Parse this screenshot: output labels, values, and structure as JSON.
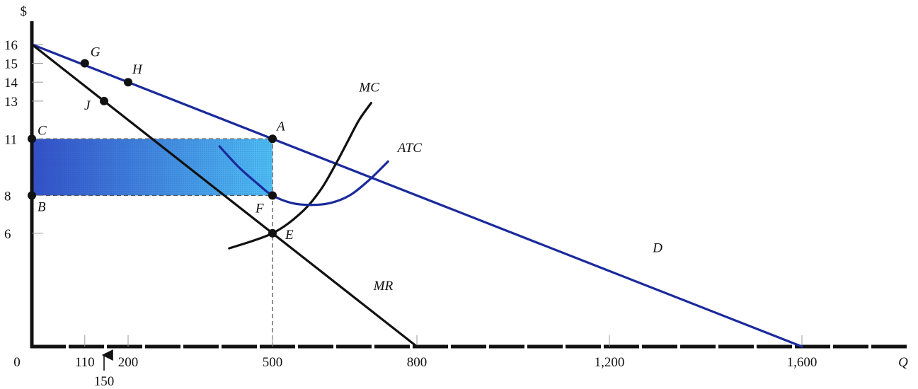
{
  "chart_data": {
    "type": "line",
    "title": "",
    "xlabel": "Q",
    "ylabel": "$",
    "origin_label": "0",
    "xlim": [
      0,
      1700
    ],
    "ylim": [
      0,
      17
    ],
    "grid": false,
    "x_ticks": [
      {
        "value": 110,
        "label": "110"
      },
      {
        "value": 200,
        "label": "200"
      },
      {
        "value": 500,
        "label": "500"
      },
      {
        "value": 800,
        "label": "800"
      },
      {
        "value": 1200,
        "label": "1,200"
      },
      {
        "value": 1600,
        "label": "1,600"
      }
    ],
    "x_callout": {
      "value": 150,
      "label": "150"
    },
    "y_ticks": [
      {
        "value": 16,
        "label": "16"
      },
      {
        "value": 15,
        "label": "15"
      },
      {
        "value": 14,
        "label": "14"
      },
      {
        "value": 13,
        "label": "13"
      },
      {
        "value": 11,
        "label": "11"
      },
      {
        "value": 8,
        "label": "8"
      },
      {
        "value": 6,
        "label": "6"
      }
    ],
    "series": [
      {
        "name": "D",
        "color": "#1a2a9c",
        "x": [
          0,
          1600
        ],
        "y": [
          16,
          0
        ]
      },
      {
        "name": "MR",
        "color": "#111111",
        "x": [
          0,
          800
        ],
        "y": [
          16,
          0
        ]
      },
      {
        "name": "MC",
        "color": "#111111",
        "x": [
          410,
          500,
          560,
          600,
          630,
          655,
          680,
          705
        ],
        "y": [
          5.2,
          6,
          7.1,
          8.3,
          9.6,
          10.8,
          12.0,
          12.9
        ]
      },
      {
        "name": "ATC",
        "color": "#1a2a9c",
        "x": [
          390,
          430,
          470,
          500,
          540,
          580,
          620,
          660,
          700,
          740
        ],
        "y": [
          10.6,
          9.5,
          8.6,
          8.0,
          7.6,
          7.5,
          7.6,
          8.0,
          8.8,
          9.8
        ]
      }
    ],
    "points": [
      {
        "name": "G",
        "x": 110,
        "y": 15
      },
      {
        "name": "H",
        "x": 200,
        "y": 14
      },
      {
        "name": "J",
        "x": 150,
        "y": 13
      },
      {
        "name": "A",
        "x": 500,
        "y": 11
      },
      {
        "name": "F",
        "x": 500,
        "y": 8
      },
      {
        "name": "E",
        "x": 500,
        "y": 6
      },
      {
        "name": "C",
        "x": 0,
        "y": 11
      },
      {
        "name": "B",
        "x": 0,
        "y": 8
      }
    ],
    "shaded_region": {
      "x0": 0,
      "x1": 500,
      "y0": 8,
      "y1": 11,
      "color": "#3d8fe6"
    },
    "reference_lines": [
      {
        "type": "vertical",
        "x": 500,
        "y_from": 0,
        "y_to": 11
      },
      {
        "type": "horizontal",
        "y": 11,
        "x_from": 0,
        "x_to": 500
      },
      {
        "type": "horizontal",
        "y": 8,
        "x_from": 0,
        "x_to": 500
      }
    ]
  }
}
